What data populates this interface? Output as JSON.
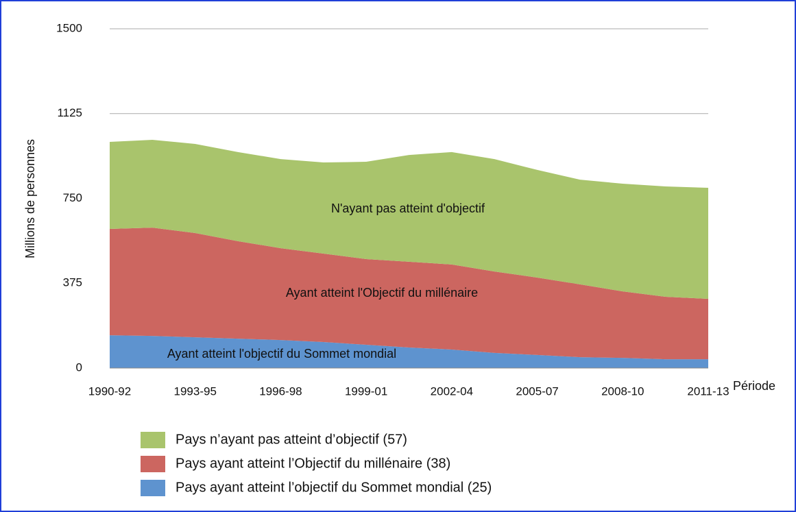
{
  "chart_data": {
    "type": "stacked_area",
    "y_label": "Millions de personnes",
    "x_label": "Période",
    "categories": [
      "1990-92",
      null,
      "1993-95",
      null,
      "1996-98",
      null,
      "1999-01",
      null,
      "2002-04",
      null,
      "2005-07",
      null,
      "2008-10",
      null,
      "2011-13"
    ],
    "series": [
      {
        "name": "Pays ayant atteint l’objectif du Sommet mondial (25)",
        "color": "#5e93cf",
        "values": [
          145,
          142,
          136,
          130,
          124,
          115,
          103,
          91,
          82,
          67,
          58,
          48,
          45,
          39,
          39
        ]
      },
      {
        "name": "Pays ayant atteint l’Objectif du millénaire (38)",
        "color": "#cc6660",
        "values": [
          470,
          479,
          461,
          431,
          406,
          391,
          379,
          379,
          376,
          360,
          342,
          322,
          294,
          276,
          267
        ]
      },
      {
        "name": "Pays n’ayant pas atteint d’objectif (57)",
        "color": "#a9c46c",
        "values": [
          385,
          388,
          394,
          394,
          394,
          403,
          430,
          472,
          497,
          497,
          476,
          463,
          476,
          488,
          491
        ]
      }
    ],
    "annotations": [
      "Ayant atteint l'objectif du Sommet mondial",
      "Ayant atteint l'Objectif du millénaire",
      "N'ayant pas atteint d'objectif"
    ],
    "ylim": [
      0,
      1500
    ],
    "yticks": [
      0,
      375,
      750,
      1125,
      1500
    ],
    "grid": true
  }
}
